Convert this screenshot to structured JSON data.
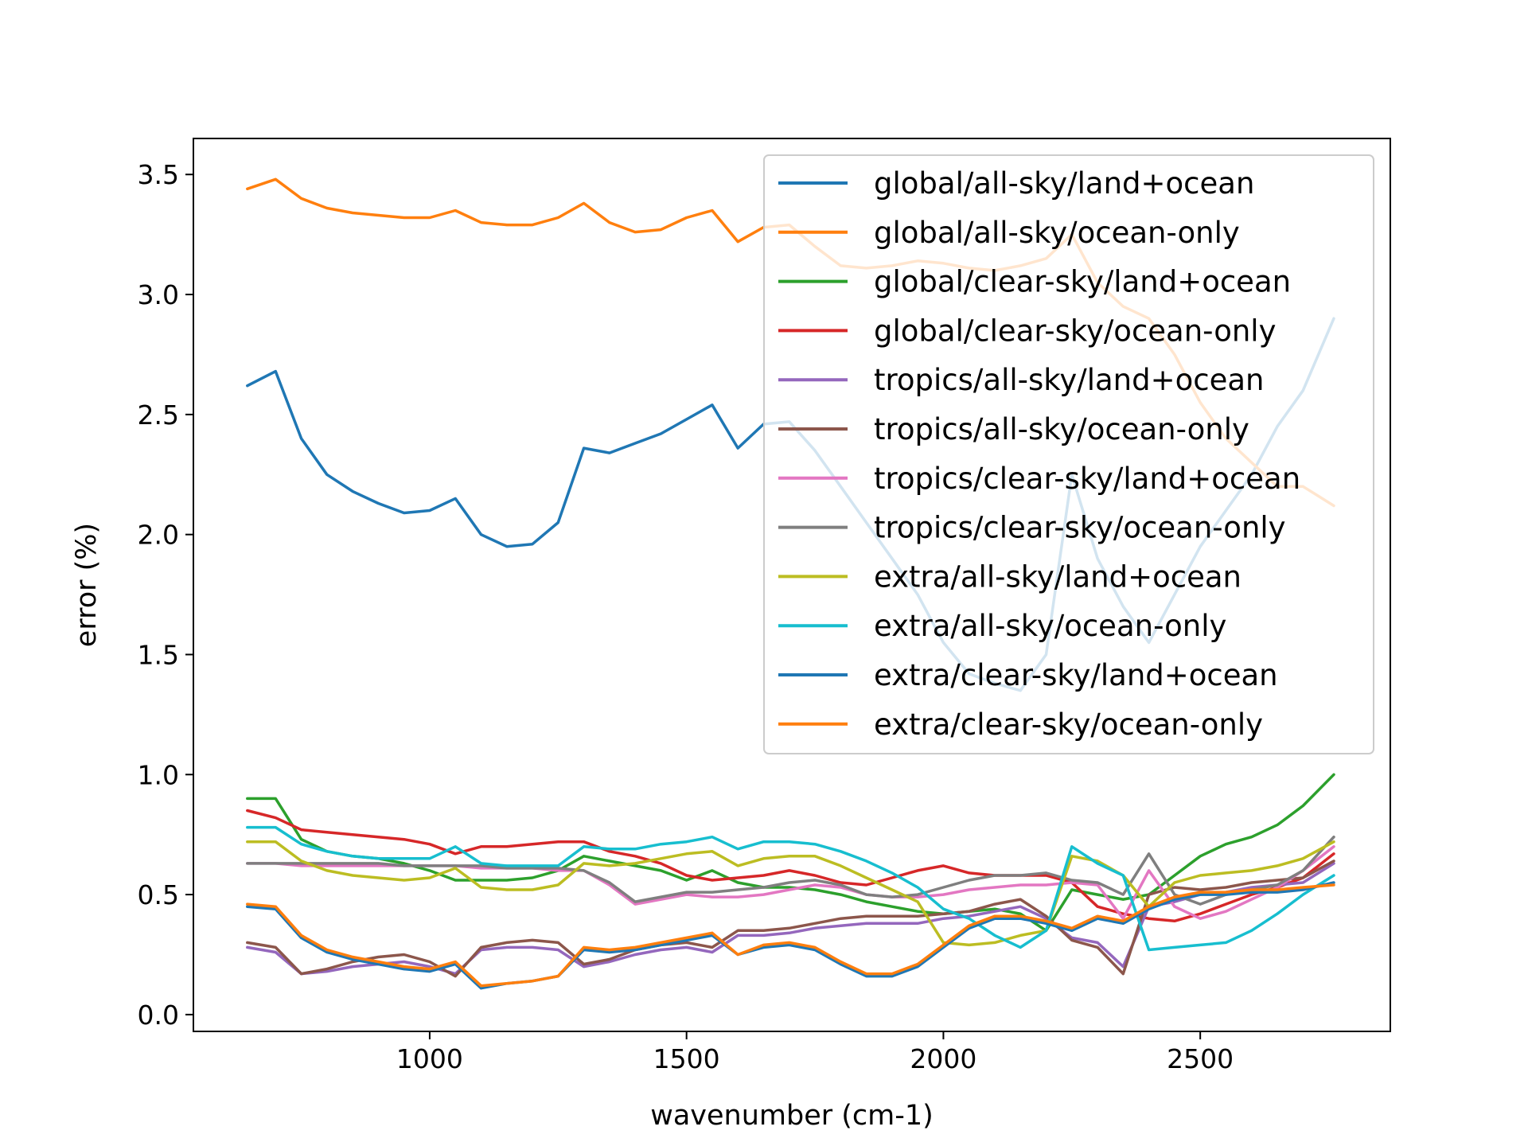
{
  "chart_data": {
    "type": "line",
    "title": "",
    "xlabel": "wavenumber (cm-1)",
    "ylabel": "error (%)",
    "xlim": [
      540,
      2870
    ],
    "ylim": [
      -0.07,
      3.65
    ],
    "xticks": [
      1000,
      1500,
      2000,
      2500
    ],
    "xtick_labels": [
      "1000",
      "1500",
      "2000",
      "2500"
    ],
    "yticks": [
      0.0,
      0.5,
      1.0,
      1.5,
      2.0,
      2.5,
      3.0,
      3.5
    ],
    "ytick_labels": [
      "0.0",
      "0.5",
      "1.0",
      "1.5",
      "2.0",
      "2.5",
      "3.0",
      "3.5"
    ],
    "grid": false,
    "legend_position": "top-right",
    "x": [
      645,
      700,
      750,
      800,
      850,
      900,
      950,
      1000,
      1050,
      1100,
      1150,
      1200,
      1250,
      1300,
      1350,
      1400,
      1450,
      1500,
      1550,
      1600,
      1650,
      1700,
      1750,
      1800,
      1850,
      1900,
      1950,
      2000,
      2050,
      2100,
      2150,
      2200,
      2250,
      2300,
      2350,
      2400,
      2450,
      2500,
      2550,
      2600,
      2650,
      2700,
      2760
    ],
    "series": [
      {
        "name": "global/all-sky/land+ocean",
        "color": "#1f77b4",
        "values": [
          2.62,
          2.68,
          2.4,
          2.25,
          2.18,
          2.13,
          2.09,
          2.1,
          2.15,
          2.0,
          1.95,
          1.96,
          2.05,
          2.36,
          2.34,
          2.38,
          2.42,
          2.48,
          2.54,
          2.36,
          2.46,
          2.47,
          2.35,
          2.2,
          2.05,
          1.9,
          1.75,
          1.55,
          1.42,
          1.38,
          1.35,
          1.5,
          2.25,
          1.9,
          1.7,
          1.55,
          1.75,
          1.95,
          2.1,
          2.25,
          2.45,
          2.6,
          2.9
        ]
      },
      {
        "name": "global/all-sky/ocean-only",
        "color": "#ff7f0e",
        "values": [
          3.44,
          3.48,
          3.4,
          3.36,
          3.34,
          3.33,
          3.32,
          3.32,
          3.35,
          3.3,
          3.29,
          3.29,
          3.32,
          3.38,
          3.3,
          3.26,
          3.27,
          3.32,
          3.35,
          3.22,
          3.28,
          3.29,
          3.2,
          3.12,
          3.11,
          3.12,
          3.14,
          3.13,
          3.11,
          3.1,
          3.12,
          3.15,
          3.25,
          3.05,
          2.95,
          2.9,
          2.75,
          2.55,
          2.4,
          2.3,
          2.2,
          2.2,
          2.12
        ]
      },
      {
        "name": "global/clear-sky/land+ocean",
        "color": "#2ca02c",
        "values": [
          0.9,
          0.9,
          0.73,
          0.68,
          0.66,
          0.65,
          0.63,
          0.6,
          0.56,
          0.56,
          0.56,
          0.57,
          0.6,
          0.66,
          0.64,
          0.62,
          0.6,
          0.56,
          0.6,
          0.55,
          0.53,
          0.53,
          0.52,
          0.5,
          0.47,
          0.45,
          0.43,
          0.42,
          0.43,
          0.44,
          0.42,
          0.35,
          0.52,
          0.5,
          0.48,
          0.5,
          0.58,
          0.66,
          0.71,
          0.74,
          0.79,
          0.87,
          1.0
        ]
      },
      {
        "name": "global/clear-sky/ocean-only",
        "color": "#d62728",
        "values": [
          0.85,
          0.82,
          0.77,
          0.76,
          0.75,
          0.74,
          0.73,
          0.71,
          0.67,
          0.7,
          0.7,
          0.71,
          0.72,
          0.72,
          0.68,
          0.66,
          0.63,
          0.58,
          0.56,
          0.57,
          0.58,
          0.6,
          0.58,
          0.55,
          0.54,
          0.57,
          0.6,
          0.62,
          0.59,
          0.58,
          0.58,
          0.58,
          0.55,
          0.45,
          0.42,
          0.4,
          0.39,
          0.42,
          0.46,
          0.5,
          0.53,
          0.57,
          0.67
        ]
      },
      {
        "name": "tropics/all-sky/land+ocean",
        "color": "#9467bd",
        "values": [
          0.28,
          0.26,
          0.17,
          0.18,
          0.2,
          0.21,
          0.22,
          0.2,
          0.17,
          0.27,
          0.28,
          0.28,
          0.27,
          0.2,
          0.22,
          0.25,
          0.27,
          0.28,
          0.26,
          0.33,
          0.33,
          0.34,
          0.36,
          0.37,
          0.38,
          0.38,
          0.38,
          0.4,
          0.41,
          0.43,
          0.45,
          0.4,
          0.32,
          0.3,
          0.2,
          0.45,
          0.47,
          0.5,
          0.51,
          0.53,
          0.54,
          0.55,
          0.63
        ]
      },
      {
        "name": "tropics/all-sky/ocean-only",
        "color": "#8c564b",
        "values": [
          0.3,
          0.28,
          0.17,
          0.19,
          0.22,
          0.24,
          0.25,
          0.22,
          0.16,
          0.28,
          0.3,
          0.31,
          0.3,
          0.21,
          0.23,
          0.27,
          0.29,
          0.3,
          0.28,
          0.35,
          0.35,
          0.36,
          0.38,
          0.4,
          0.41,
          0.41,
          0.41,
          0.42,
          0.43,
          0.46,
          0.48,
          0.41,
          0.31,
          0.28,
          0.17,
          0.5,
          0.53,
          0.52,
          0.53,
          0.55,
          0.56,
          0.57,
          0.64
        ]
      },
      {
        "name": "tropics/clear-sky/land+ocean",
        "color": "#e377c2",
        "values": [
          0.63,
          0.63,
          0.62,
          0.62,
          0.62,
          0.62,
          0.62,
          0.62,
          0.62,
          0.61,
          0.61,
          0.61,
          0.6,
          0.6,
          0.54,
          0.46,
          0.48,
          0.5,
          0.49,
          0.49,
          0.5,
          0.52,
          0.54,
          0.53,
          0.5,
          0.49,
          0.49,
          0.5,
          0.52,
          0.53,
          0.54,
          0.54,
          0.55,
          0.54,
          0.4,
          0.6,
          0.45,
          0.4,
          0.43,
          0.48,
          0.53,
          0.6,
          0.7
        ]
      },
      {
        "name": "tropics/clear-sky/ocean-only",
        "color": "#7f7f7f",
        "values": [
          0.63,
          0.63,
          0.63,
          0.63,
          0.63,
          0.63,
          0.62,
          0.62,
          0.62,
          0.62,
          0.61,
          0.61,
          0.61,
          0.6,
          0.55,
          0.47,
          0.49,
          0.51,
          0.51,
          0.52,
          0.53,
          0.55,
          0.56,
          0.54,
          0.5,
          0.49,
          0.5,
          0.53,
          0.56,
          0.58,
          0.58,
          0.59,
          0.56,
          0.55,
          0.5,
          0.67,
          0.5,
          0.46,
          0.5,
          0.52,
          0.54,
          0.6,
          0.74
        ]
      },
      {
        "name": "extra/all-sky/land+ocean",
        "color": "#bcbd22",
        "values": [
          0.72,
          0.72,
          0.64,
          0.6,
          0.58,
          0.57,
          0.56,
          0.57,
          0.61,
          0.53,
          0.52,
          0.52,
          0.54,
          0.63,
          0.62,
          0.63,
          0.65,
          0.67,
          0.68,
          0.62,
          0.65,
          0.66,
          0.66,
          0.62,
          0.57,
          0.52,
          0.47,
          0.3,
          0.29,
          0.3,
          0.33,
          0.35,
          0.66,
          0.64,
          0.58,
          0.45,
          0.55,
          0.58,
          0.59,
          0.6,
          0.62,
          0.65,
          0.72
        ]
      },
      {
        "name": "extra/all-sky/ocean-only",
        "color": "#17becf",
        "values": [
          0.78,
          0.78,
          0.71,
          0.68,
          0.66,
          0.65,
          0.65,
          0.65,
          0.7,
          0.63,
          0.62,
          0.62,
          0.62,
          0.7,
          0.69,
          0.69,
          0.71,
          0.72,
          0.74,
          0.69,
          0.72,
          0.72,
          0.71,
          0.68,
          0.64,
          0.59,
          0.53,
          0.44,
          0.4,
          0.33,
          0.28,
          0.35,
          0.7,
          0.63,
          0.58,
          0.27,
          0.28,
          0.29,
          0.3,
          0.35,
          0.42,
          0.5,
          0.58
        ]
      },
      {
        "name": "extra/clear-sky/land+ocean",
        "color": "#1f77b4",
        "values": [
          0.45,
          0.44,
          0.32,
          0.26,
          0.23,
          0.21,
          0.19,
          0.18,
          0.21,
          0.11,
          0.13,
          0.14,
          0.16,
          0.27,
          0.26,
          0.27,
          0.29,
          0.31,
          0.33,
          0.25,
          0.28,
          0.29,
          0.27,
          0.21,
          0.16,
          0.16,
          0.2,
          0.28,
          0.36,
          0.4,
          0.4,
          0.38,
          0.35,
          0.4,
          0.38,
          0.44,
          0.48,
          0.5,
          0.5,
          0.51,
          0.51,
          0.52,
          0.55
        ]
      },
      {
        "name": "extra/clear-sky/ocean-only",
        "color": "#ff7f0e",
        "values": [
          0.46,
          0.45,
          0.33,
          0.27,
          0.24,
          0.22,
          0.2,
          0.19,
          0.22,
          0.12,
          0.13,
          0.14,
          0.16,
          0.28,
          0.27,
          0.28,
          0.3,
          0.32,
          0.34,
          0.25,
          0.29,
          0.3,
          0.28,
          0.22,
          0.17,
          0.17,
          0.21,
          0.29,
          0.37,
          0.41,
          0.41,
          0.39,
          0.36,
          0.41,
          0.39,
          0.45,
          0.49,
          0.51,
          0.51,
          0.52,
          0.52,
          0.53,
          0.54
        ]
      }
    ]
  }
}
